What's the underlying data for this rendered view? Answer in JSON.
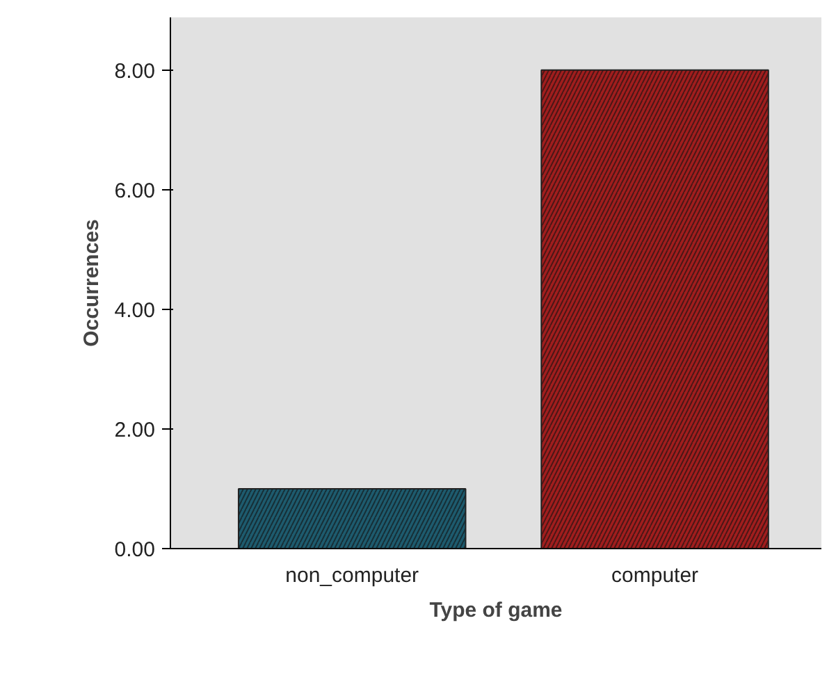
{
  "chart_data": {
    "type": "bar",
    "xlabel": "Type of game",
    "ylabel": "Occurrences",
    "categories": [
      "non_computer",
      "computer"
    ],
    "values": [
      1,
      8
    ],
    "colors": [
      "#1d5b6e",
      "#a11d1d"
    ],
    "ylim": [
      0,
      8.88
    ],
    "yticks": [
      {
        "value": 0,
        "label": "0.00"
      },
      {
        "value": 2,
        "label": "2.00"
      },
      {
        "value": 4,
        "label": "4.00"
      },
      {
        "value": 6,
        "label": "6.00"
      },
      {
        "value": 8,
        "label": "8.00"
      }
    ]
  }
}
